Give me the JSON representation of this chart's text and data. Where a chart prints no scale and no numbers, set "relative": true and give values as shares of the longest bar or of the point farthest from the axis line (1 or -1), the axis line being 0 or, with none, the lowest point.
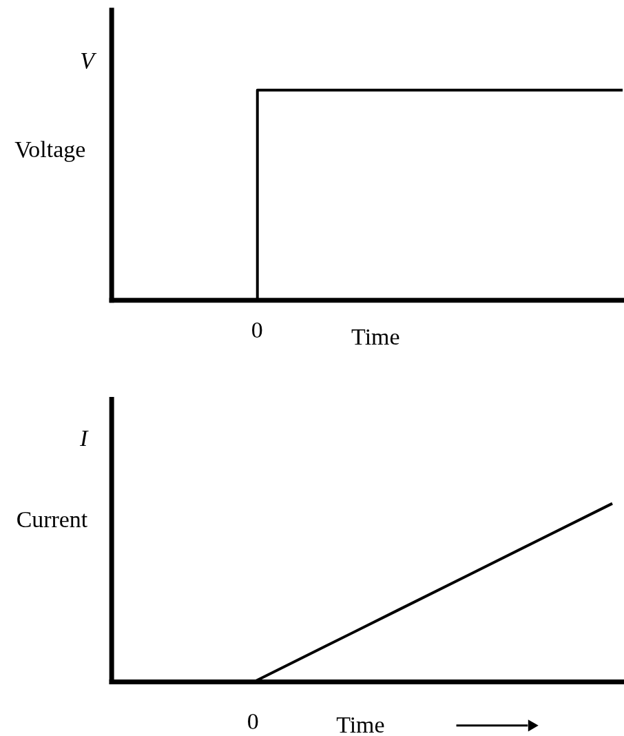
{
  "chart_data": [
    {
      "type": "step",
      "categories": [
        null,
        null,
        null,
        null,
        null,
        null,
        null,
        null
      ],
      "values": [
        0,
        0,
        1,
        1,
        1,
        1,
        1,
        1
      ],
      "color": "#000000",
      "relative": true,
      "xlabel": "Time",
      "ylabel": "Voltage",
      "annotations": [
        "V",
        "0"
      ]
    },
    {
      "type": "line",
      "categories": [
        null,
        null,
        null,
        null,
        null,
        null,
        null,
        null
      ],
      "values": [
        0,
        0,
        0,
        0.2,
        0.4,
        0.6,
        0.8,
        1
      ],
      "color": "#000000",
      "relative": true,
      "xlabel": "Time",
      "ylabel": "Current",
      "annotations": [
        "I",
        "0"
      ]
    }
  ]
}
